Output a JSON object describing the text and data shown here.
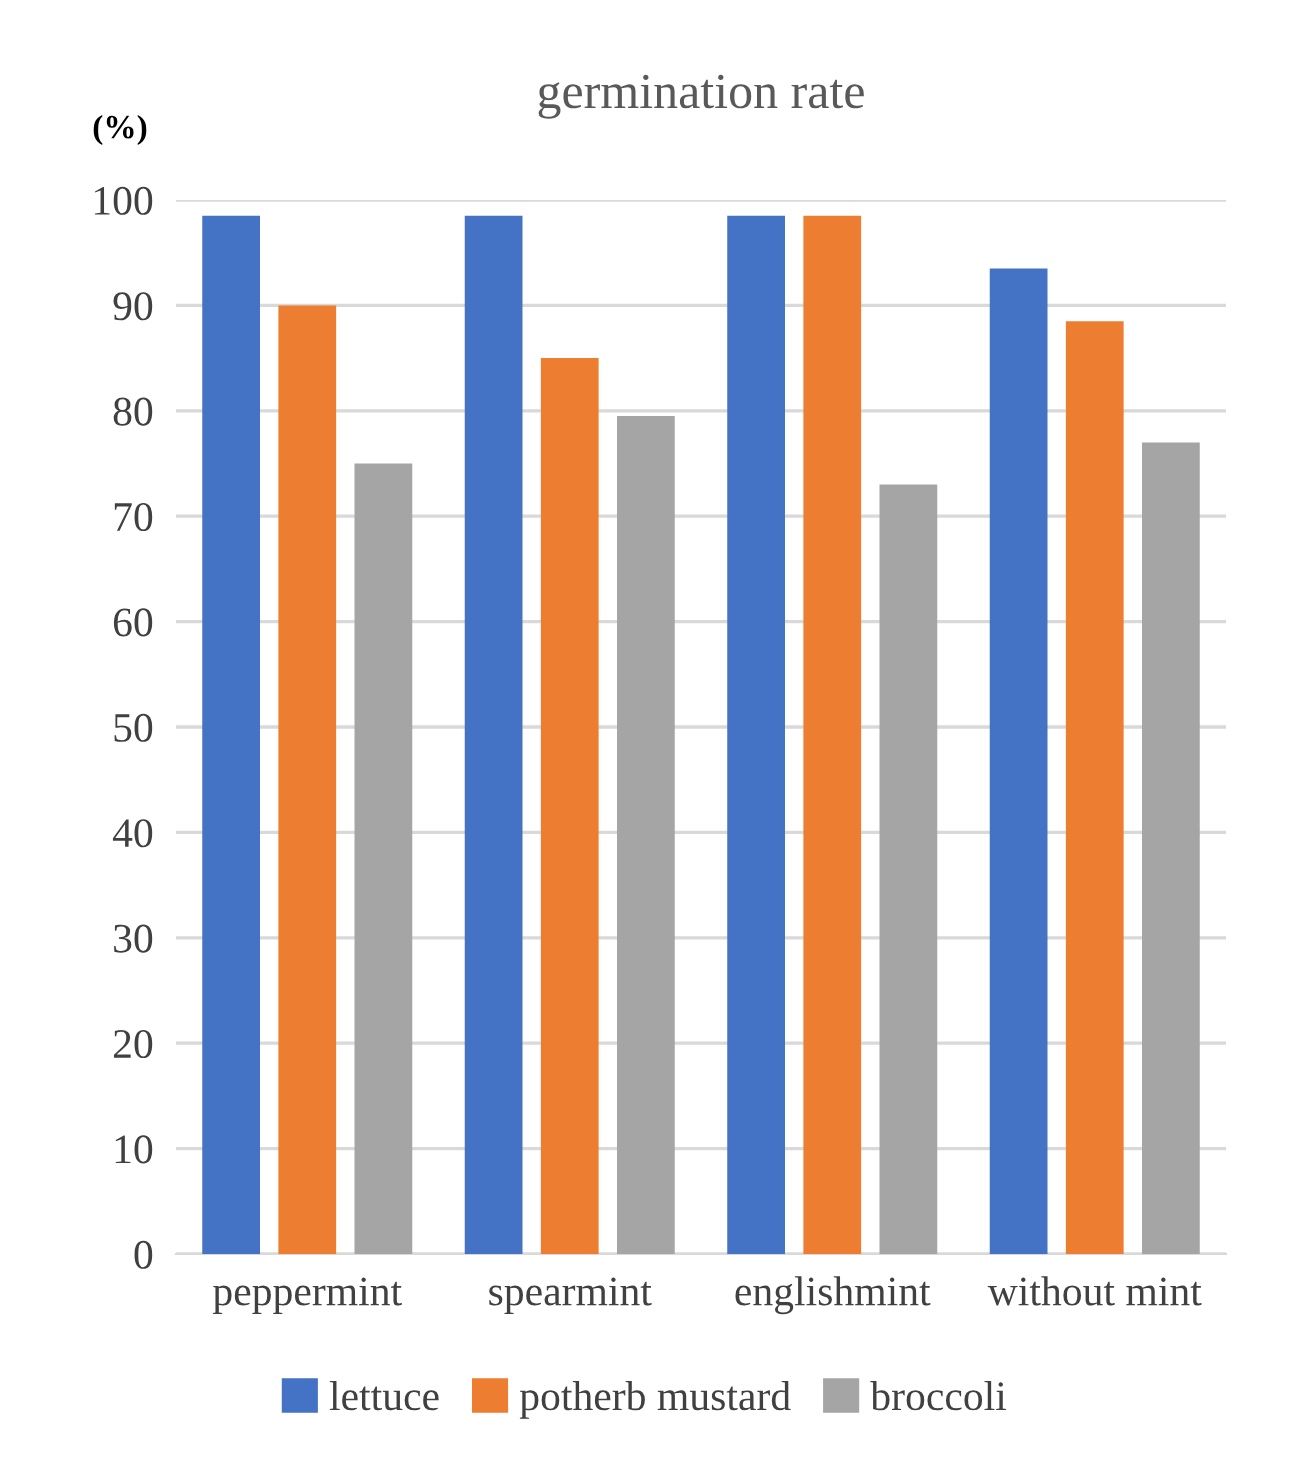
{
  "chart_data": {
    "type": "bar",
    "title": "germination rate",
    "ylabel": "(%)",
    "categories": [
      "peppermint",
      "spearmint",
      "englishmint",
      "without mint"
    ],
    "series": [
      {
        "name": "lettuce",
        "color": "#4472c4",
        "values": [
          98.5,
          98.5,
          98.5,
          93.5
        ]
      },
      {
        "name": "potherb mustard",
        "color": "#ed7d31",
        "values": [
          90,
          85,
          98.5,
          88.5
        ]
      },
      {
        "name": "broccoli",
        "color": "#a5a5a5",
        "values": [
          75,
          79.5,
          73,
          77
        ]
      }
    ],
    "ylim": [
      0,
      100
    ],
    "yticks": [
      0,
      10,
      20,
      30,
      40,
      50,
      60,
      70,
      80,
      90,
      100
    ],
    "grid": "y",
    "legend": "bottom"
  }
}
